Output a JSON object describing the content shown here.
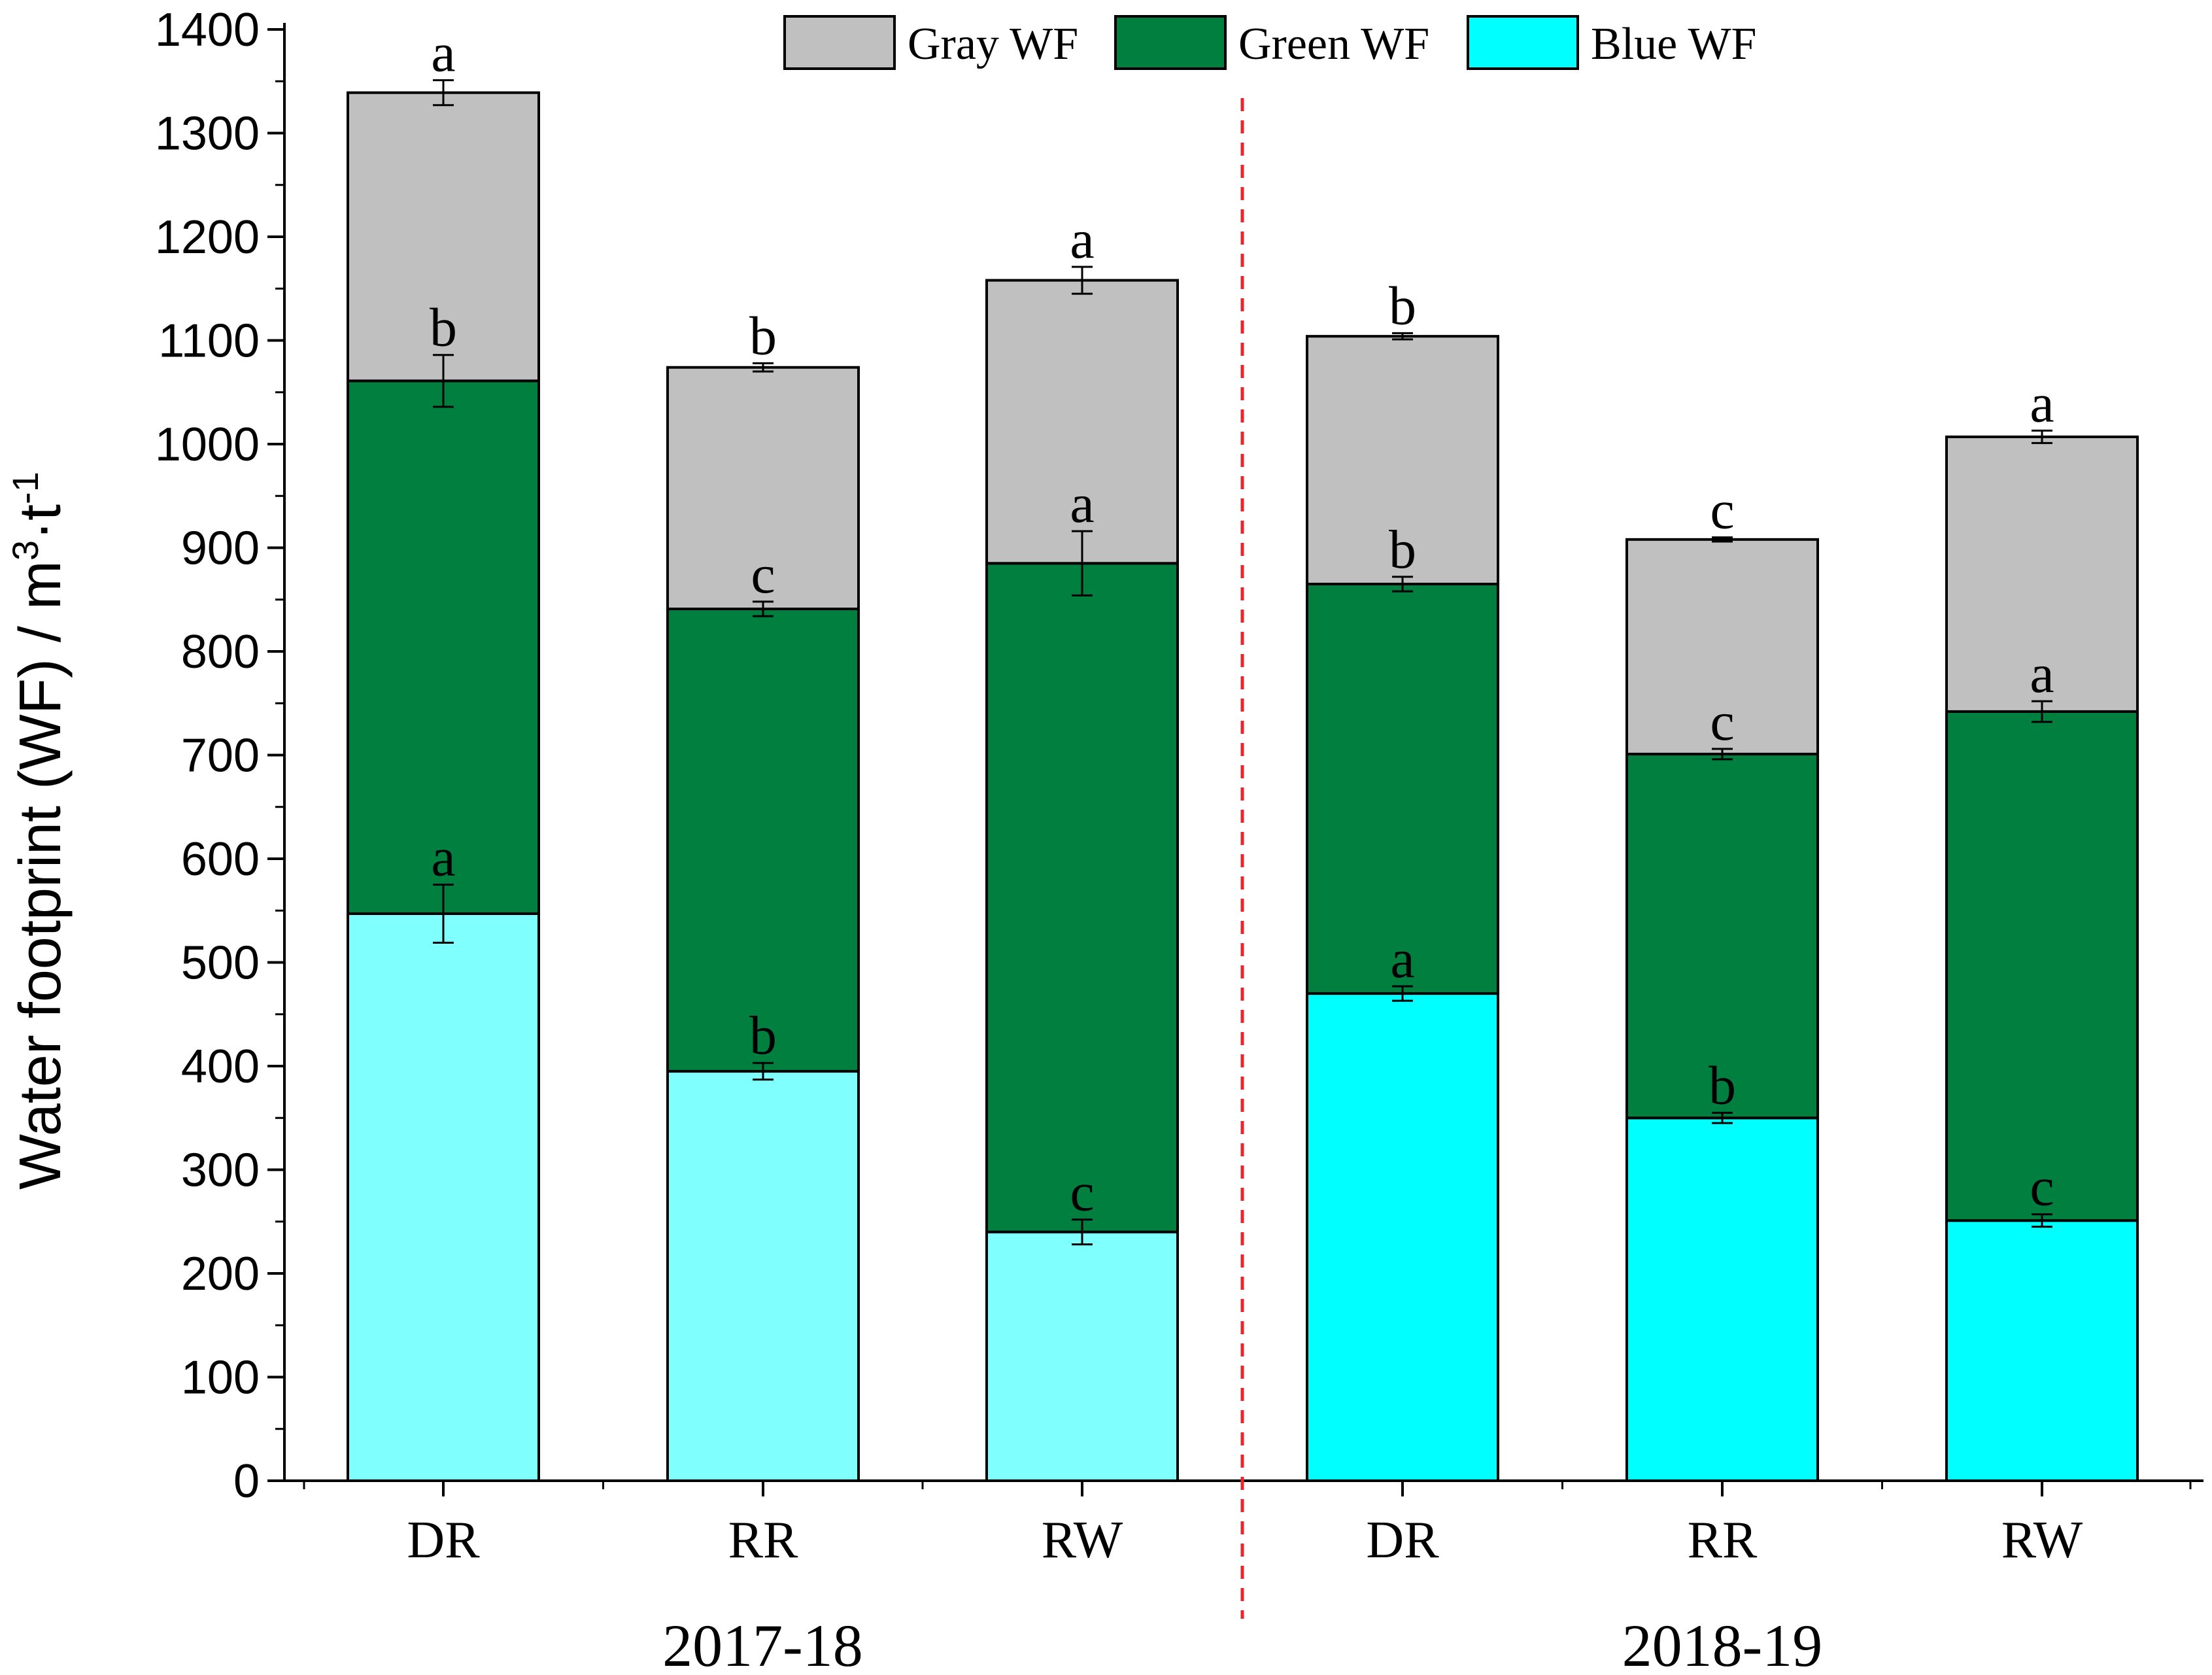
{
  "chart_data": {
    "type": "bar",
    "stacked": true,
    "title": "",
    "xlabel": "",
    "ylabel": "Water footprint (WF) / m",
    "ylabel_unit_sup1": "3",
    "ylabel_unit_mid": "·t",
    "ylabel_unit_sup2": "-1",
    "ylim": [
      0,
      1400
    ],
    "yticks": [
      0,
      100,
      200,
      300,
      400,
      500,
      600,
      700,
      800,
      900,
      1000,
      1100,
      1200,
      1300,
      1400
    ],
    "categories": [
      "DR",
      "RR",
      "RW",
      "DR",
      "RR",
      "RW"
    ],
    "groups": [
      {
        "label": "2017-18",
        "indices": [
          0,
          1,
          2
        ]
      },
      {
        "label": "2018-19",
        "indices": [
          3,
          4,
          5
        ]
      }
    ],
    "legend": [
      "Gray WF",
      "Green WF",
      "Blue WF"
    ],
    "legend_position": "top-right",
    "series": [
      {
        "name": "Blue WF",
        "values": [
          547,
          395,
          240,
          470,
          350,
          251
        ],
        "errors": [
          28,
          8,
          12,
          7,
          5,
          6
        ],
        "significance": [
          "a",
          "b",
          "c",
          "a",
          "b",
          "c"
        ],
        "colors": [
          "#80ffff",
          "#80ffff",
          "#80ffff",
          "#00ffff",
          "#00ffff",
          "#00ffff"
        ]
      },
      {
        "name": "Green WF",
        "values": [
          514,
          446,
          645,
          395,
          351,
          491
        ],
        "errors": [
          25,
          7,
          31,
          7,
          5,
          10
        ],
        "significance": [
          "b",
          "c",
          "a",
          "b",
          "c",
          "a"
        ],
        "colors": [
          "#007f3f",
          "#007f3f",
          "#007f3f",
          "#007f3f",
          "#007f3f",
          "#007f3f"
        ]
      },
      {
        "name": "Gray WF",
        "values": [
          278,
          233,
          273,
          239,
          207,
          265
        ],
        "errors": [
          12,
          4,
          13,
          3,
          2,
          6
        ],
        "significance": [
          "a",
          "b",
          "a",
          "b",
          "c",
          "a"
        ],
        "colors": [
          "#c0c0c0",
          "#c0c0c0",
          "#c0c0c0",
          "#c0c0c0",
          "#c0c0c0",
          "#c0c0c0"
        ]
      }
    ],
    "legend_colors": [
      "#c0c0c0",
      "#007f3f",
      "#00ffff"
    ],
    "divider_color": "#e8262c"
  }
}
